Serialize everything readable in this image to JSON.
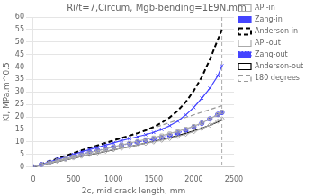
{
  "chart_data": {
    "type": "line",
    "title": "Ri/t=7,Circum, Mgb-bending=1E9N.mm",
    "xlabel": "2c, mid crack length, mm",
    "ylabel": "KI, MPa.m^0.5",
    "xlim": [
      0,
      2500
    ],
    "ylim": [
      0,
      60
    ],
    "xticks": [
      0,
      500,
      1000,
      1500,
      2000,
      2500
    ],
    "yticks": [
      0,
      5,
      10,
      15,
      20,
      25,
      30,
      35,
      40,
      45,
      50,
      55,
      60
    ],
    "grid": "y",
    "legend": "right",
    "vline_x": 2350,
    "series": [
      {
        "name": "API-in",
        "color": "#aaaaaa",
        "marker": "open-square",
        "line_style": "solid",
        "x": [
          0,
          100,
          200,
          300,
          400,
          500,
          600,
          700,
          800,
          900,
          1000,
          1100,
          1200,
          1300,
          1400,
          1500,
          1600,
          1700,
          1800,
          1900,
          2000,
          2100,
          2200,
          2300,
          2350
        ],
        "values": [
          0,
          0.9,
          1.7,
          2.5,
          3.3,
          4.1,
          4.9,
          5.7,
          6.4,
          7.2,
          8.0,
          8.8,
          9.5,
          10.3,
          11.0,
          11.7,
          12.5,
          13.3,
          14.2,
          15.2,
          16.3,
          17.6,
          19.2,
          21.0,
          22.0
        ]
      },
      {
        "name": "Zang-in",
        "color": "#4444ff",
        "marker": "x",
        "line_style": "solid",
        "x": [
          0,
          100,
          200,
          300,
          400,
          500,
          600,
          700,
          800,
          900,
          1000,
          1100,
          1200,
          1300,
          1400,
          1500,
          1600,
          1700,
          1800,
          1900,
          2000,
          2100,
          2200,
          2300,
          2350
        ],
        "values": [
          0,
          1.0,
          2.0,
          3.0,
          4.0,
          5.0,
          6.0,
          6.9,
          7.8,
          8.7,
          9.6,
          10.5,
          11.3,
          12.1,
          12.9,
          13.8,
          15.0,
          16.5,
          18.3,
          20.8,
          23.8,
          27.5,
          31.5,
          36.5,
          40.5
        ]
      },
      {
        "name": "Anderson-in",
        "color": "#000000",
        "marker": "none",
        "line_style": "dashed",
        "x": [
          0,
          100,
          200,
          300,
          400,
          500,
          600,
          700,
          800,
          900,
          1000,
          1100,
          1200,
          1300,
          1400,
          1500,
          1600,
          1700,
          1800,
          1900,
          2000,
          2100,
          2200,
          2300,
          2350
        ],
        "values": [
          0,
          1.1,
          2.2,
          3.3,
          4.4,
          5.5,
          6.6,
          7.6,
          8.6,
          9.6,
          10.6,
          11.6,
          12.5,
          13.5,
          14.6,
          16.0,
          17.7,
          19.8,
          22.5,
          26.0,
          30.5,
          36.0,
          43.0,
          51.0,
          55.0
        ]
      },
      {
        "name": "API-out",
        "color": "#aaaaaa",
        "marker": "open-diamond",
        "line_style": "solid",
        "x": [
          0,
          100,
          200,
          300,
          400,
          500,
          600,
          700,
          800,
          900,
          1000,
          1100,
          1200,
          1300,
          1400,
          1500,
          1600,
          1700,
          1800,
          1900,
          2000,
          2100,
          2200,
          2300,
          2350
        ],
        "values": [
          0,
          0.8,
          1.5,
          2.2,
          2.9,
          3.6,
          4.3,
          5.0,
          5.6,
          6.3,
          6.9,
          7.5,
          8.1,
          8.8,
          9.4,
          10.0,
          10.7,
          11.4,
          12.2,
          13.1,
          14.1,
          15.3,
          16.7,
          18.3,
          19.2
        ]
      },
      {
        "name": "Zang-out",
        "color": "#4444ff",
        "marker": "circle",
        "line_style": "dotted",
        "x": [
          0,
          100,
          200,
          300,
          400,
          500,
          600,
          700,
          800,
          900,
          1000,
          1100,
          1200,
          1300,
          1400,
          1500,
          1600,
          1700,
          1800,
          1900,
          2000,
          2100,
          2200,
          2300,
          2350
        ],
        "values": [
          0,
          0.9,
          1.8,
          2.7,
          3.5,
          4.3,
          5.1,
          5.9,
          6.6,
          7.3,
          8.0,
          8.7,
          9.3,
          9.9,
          10.5,
          11.1,
          11.8,
          12.6,
          13.5,
          14.6,
          16.0,
          17.5,
          19.2,
          21.0,
          21.8
        ]
      },
      {
        "name": "Anderson-out",
        "color": "#000000",
        "marker": "none",
        "line_style": "solid",
        "x": [
          0,
          100,
          200,
          300,
          400,
          500,
          600,
          700,
          800,
          900,
          1000,
          1100,
          1200,
          1300,
          1400,
          1500,
          1600,
          1700,
          1800,
          1900,
          2000,
          2100,
          2200,
          2300,
          2350
        ],
        "values": [
          0,
          0.7,
          1.4,
          2.1,
          2.8,
          3.5,
          4.2,
          4.9,
          5.5,
          6.2,
          6.8,
          7.5,
          8.1,
          8.8,
          9.5,
          10.2,
          10.9,
          11.7,
          12.5,
          13.4,
          14.4,
          15.5,
          16.7,
          18.0,
          18.8
        ]
      },
      {
        "name": "180 degrees",
        "color": "#999999",
        "marker": "none",
        "line_style": "dashed",
        "x": [
          0,
          2350
        ],
        "values": [
          0,
          24.5
        ]
      }
    ]
  }
}
